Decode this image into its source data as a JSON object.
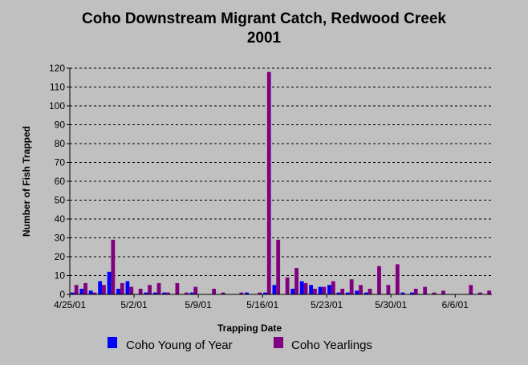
{
  "chart_data": {
    "type": "bar",
    "title": "Coho Downstream Migrant Catch, Redwood Creek",
    "subtitle": "2001",
    "xlabel": "Trapping Date",
    "ylabel": "Number of Fish Trapped",
    "ylim": [
      0,
      120
    ],
    "y_ticks": [
      0,
      10,
      20,
      30,
      40,
      50,
      60,
      70,
      80,
      90,
      100,
      110,
      120
    ],
    "x_tick_labels": [
      "4/25/01",
      "5/2/01",
      "5/9/01",
      "5/16/01",
      "5/23/01",
      "5/30/01",
      "6/6/01"
    ],
    "categories": [
      "4/25/01",
      "4/26/01",
      "4/27/01",
      "4/28/01",
      "4/29/01",
      "4/30/01",
      "5/1/01",
      "5/2/01",
      "5/3/01",
      "5/4/01",
      "5/5/01",
      "5/6/01",
      "5/7/01",
      "5/8/01",
      "5/9/01",
      "5/10/01",
      "5/11/01",
      "5/12/01",
      "5/13/01",
      "5/14/01",
      "5/15/01",
      "5/16/01",
      "5/17/01",
      "5/18/01",
      "5/19/01",
      "5/20/01",
      "5/21/01",
      "5/22/01",
      "5/23/01",
      "5/24/01",
      "5/25/01",
      "5/26/01",
      "5/27/01",
      "5/28/01",
      "5/29/01",
      "5/30/01",
      "5/31/01",
      "6/1/01",
      "6/2/01",
      "6/3/01",
      "6/4/01",
      "6/5/01",
      "6/6/01",
      "6/7/01",
      "6/8/01",
      "6/9/01"
    ],
    "series": [
      {
        "name": "Coho Young of Year",
        "color": "#0000ff",
        "values": [
          1,
          3,
          2,
          7,
          12,
          3,
          7,
          0,
          1,
          1,
          1,
          0,
          0,
          1,
          0,
          0,
          0,
          0,
          0,
          1,
          0,
          1,
          5,
          0,
          3,
          7,
          5,
          4,
          5,
          1,
          1,
          2,
          1,
          0,
          0,
          0,
          1,
          1,
          0,
          0,
          0,
          0,
          0,
          0,
          0,
          0
        ]
      },
      {
        "name": "Coho Yearlings",
        "color": "#800080",
        "values": [
          5,
          6,
          1,
          5,
          29,
          6,
          4,
          3,
          5,
          6,
          1,
          6,
          1,
          4,
          0,
          3,
          1,
          0,
          1,
          0,
          1,
          118,
          29,
          9,
          14,
          6,
          3,
          4,
          7,
          3,
          8,
          5,
          3,
          15,
          5,
          16,
          0,
          3,
          4,
          1,
          2,
          0,
          0,
          5,
          1,
          2
        ]
      }
    ],
    "grid": true,
    "legend_position": "bottom"
  }
}
